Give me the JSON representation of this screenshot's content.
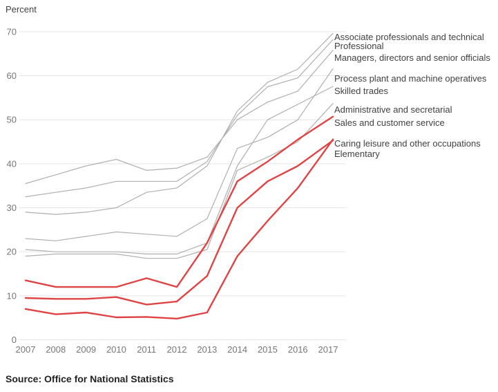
{
  "axis_title": "Percent",
  "source": "Source: Office for National Statistics",
  "colors": {
    "highlight_red": "#e04343",
    "muted_gray": "#b1aeae",
    "gridline": "#e4e4e4",
    "tick_text": "#767676",
    "label_text": "#414042"
  },
  "chart_data": {
    "type": "line",
    "title": "",
    "xlabel": "",
    "ylabel": "Percent",
    "x": [
      2007,
      2008,
      2009,
      2010,
      2011,
      2012,
      2013,
      2014,
      2015,
      2016,
      2017
    ],
    "ylim": [
      0,
      70
    ],
    "yticks": [
      0,
      10,
      20,
      30,
      40,
      50,
      60,
      70
    ],
    "grid": true,
    "legend_position": "right-of-line-ends",
    "series": [
      {
        "label": "Associate professionals and technical",
        "color": "gray",
        "values": [
          29,
          28.5,
          29,
          30,
          33.5,
          34.5,
          39.5,
          52,
          58.5,
          61.5,
          68.5
        ]
      },
      {
        "label": "Professional",
        "color": "gray",
        "values": [
          32.5,
          33.5,
          34.5,
          36,
          36,
          36,
          40.5,
          51,
          57.5,
          59.5,
          67
        ]
      },
      {
        "label": "Managers, directors and senior officials",
        "color": "gray",
        "values": [
          35.5,
          37.5,
          39.5,
          41,
          38.5,
          39,
          41.5,
          50,
          54,
          56.5,
          64.5
        ]
      },
      {
        "label": "Process plant and machine operatives",
        "color": "gray",
        "values": [
          23,
          22.5,
          23.5,
          24.5,
          24,
          23.5,
          27.5,
          43.5,
          46,
          50,
          60
        ]
      },
      {
        "label": "Skilled trades",
        "color": "gray",
        "values": [
          20.5,
          20,
          20,
          20,
          19.5,
          19.5,
          22,
          39.5,
          50,
          53.5,
          57
        ]
      },
      {
        "label": "Administrative and secretarial",
        "color": "gray",
        "values": [
          19,
          19.5,
          19.5,
          19.5,
          18.5,
          18.5,
          20.5,
          38.5,
          41.5,
          45,
          52.5
        ]
      },
      {
        "label": "Sales and customer service",
        "color": "red",
        "values": [
          13.5,
          12,
          12,
          12,
          14,
          12,
          22,
          36,
          40.5,
          45.5,
          50
        ]
      },
      {
        "label": "Caring leisure and other occupations",
        "color": "red",
        "values": [
          9.5,
          9.3,
          9.3,
          9.7,
          8,
          8.7,
          14.5,
          30,
          36,
          39.5,
          44.5
        ]
      },
      {
        "label": "Elementary",
        "color": "red",
        "values": [
          7,
          5.8,
          6.2,
          5.1,
          5.2,
          4.8,
          6.2,
          19,
          27,
          34.5,
          44
        ]
      }
    ]
  }
}
